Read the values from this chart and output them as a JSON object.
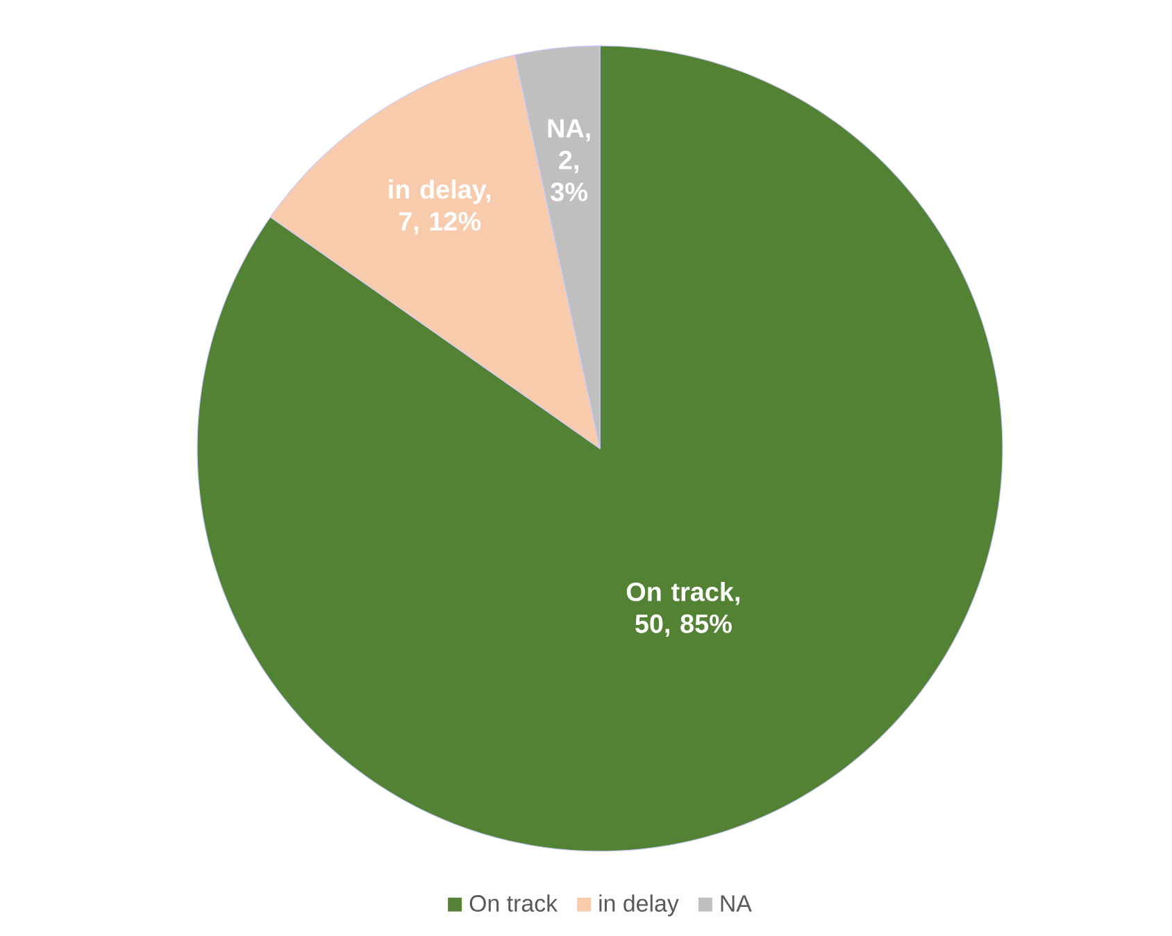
{
  "chart_data": {
    "type": "pie",
    "categories": [
      "On track",
      "in delay",
      "NA"
    ],
    "values": [
      50,
      7,
      2
    ],
    "value_labels": [
      "On track, 50, 85%",
      "in delay, 7, 12%",
      "NA, 2, 3%"
    ],
    "colors": [
      "#548235",
      "#f8cbad",
      "#bfbfbf"
    ],
    "legend": "bottom"
  }
}
